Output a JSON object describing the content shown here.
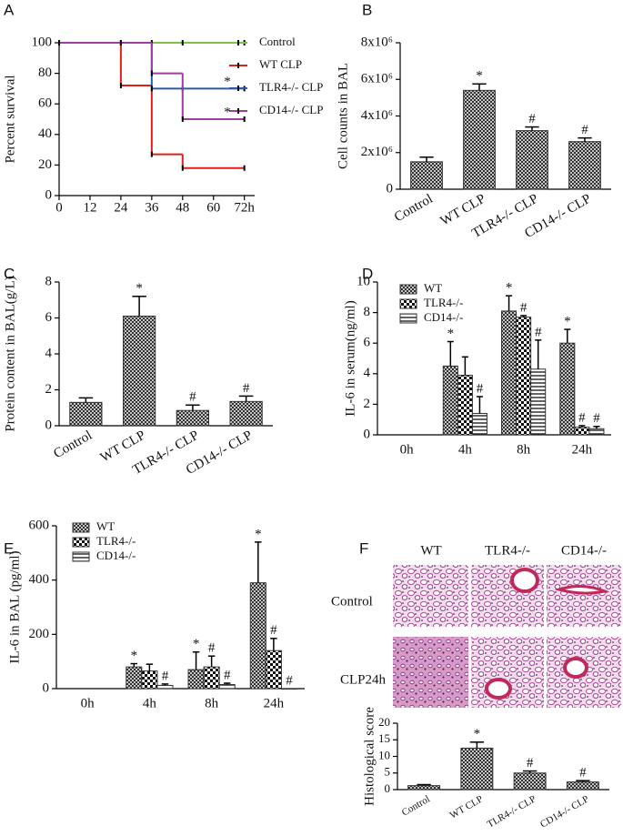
{
  "chart_data": [
    {
      "type": "line",
      "step": true,
      "panel": "A",
      "ylabel": "Percent survival",
      "x": [
        0,
        24,
        36,
        48,
        72
      ],
      "xlim": [
        0,
        76
      ],
      "xticks": [
        0,
        12,
        24,
        36,
        48,
        60,
        {
          "value": 72,
          "label": "72h"
        }
      ],
      "ylim": [
        0,
        100
      ],
      "yticks": [
        0,
        20,
        40,
        60,
        80,
        100
      ],
      "series": [
        {
          "name": "Control",
          "color": "#7dc242",
          "values": [
            100,
            100,
            100,
            100,
            100
          ]
        },
        {
          "name": "WT CLP",
          "color": "#e0201b",
          "values": [
            100,
            72,
            27,
            18,
            18
          ]
        },
        {
          "name": "TLR4-/- CLP",
          "color": "#2a5aa8",
          "values": [
            100,
            100,
            70,
            70,
            70
          ],
          "annotation": "*"
        },
        {
          "name": "CD14-/- CLP",
          "color": "#9b3fa0",
          "values": [
            100,
            100,
            80,
            50,
            50
          ],
          "annotation": "*"
        }
      ]
    },
    {
      "type": "bar",
      "panel": "B",
      "ylabel": "Cell counts in BAL",
      "categories": [
        "Control",
        "WT CLP",
        "TLR4-/- CLP",
        "CD14-/- CLP"
      ],
      "values": [
        1500000,
        5400000,
        3200000,
        2600000
      ],
      "errors": [
        250000,
        350000,
        200000,
        200000
      ],
      "markers": [
        null,
        "*",
        "#",
        "#"
      ],
      "color": "#333",
      "hatch": "cross",
      "ylim": [
        0,
        8000000
      ],
      "yticks": [
        0,
        {
          "value": 2000000,
          "label": "2x10⁶"
        },
        {
          "value": 4000000,
          "label": "4x10⁶"
        },
        {
          "value": 6000000,
          "label": "6x10⁶"
        },
        {
          "value": 8000000,
          "label": "8x10⁶"
        }
      ]
    },
    {
      "type": "bar",
      "panel": "C",
      "ylabel": "Protein content in BAL(g/L)",
      "categories": [
        "Control",
        "WT CLP",
        "TLR4-/- CLP",
        "CD14-/- CLP"
      ],
      "values": [
        1.3,
        6.1,
        0.85,
        1.35
      ],
      "errors": [
        0.25,
        1.1,
        0.3,
        0.3
      ],
      "markers": [
        null,
        "*",
        "#",
        "#"
      ],
      "color": "#333",
      "hatch": "cross",
      "ylim": [
        0,
        8
      ],
      "yticks": [
        0,
        2,
        4,
        6,
        8
      ]
    },
    {
      "type": "bar",
      "panel": "D",
      "ylabel": "IL-6 in serum(ng/ml)",
      "categories": [
        "0h",
        "4h",
        "8h",
        "24h"
      ],
      "ylim": [
        0,
        10
      ],
      "yticks": [
        0,
        2,
        4,
        6,
        8,
        10
      ],
      "series": [
        {
          "name": "WT",
          "color": "#333",
          "hatch": "cross",
          "values": [
            null,
            4.5,
            8.1,
            6.0
          ],
          "errors": [
            null,
            1.6,
            1.0,
            0.9
          ],
          "markers": [
            null,
            "*",
            "*",
            "*"
          ]
        },
        {
          "name": "TLR4-/-",
          "color": "#333",
          "hatch": "check",
          "values": [
            null,
            3.9,
            7.7,
            0.5
          ],
          "errors": [
            null,
            1.2,
            0.1,
            0.1
          ],
          "markers": [
            null,
            null,
            "#",
            "#"
          ]
        },
        {
          "name": "CD14-/-",
          "color": "#333",
          "hatch": "stripe",
          "values": [
            null,
            1.4,
            4.3,
            0.4
          ],
          "errors": [
            null,
            1.1,
            1.9,
            0.15
          ],
          "markers": [
            null,
            "#",
            "#",
            "#"
          ]
        }
      ]
    },
    {
      "type": "bar",
      "panel": "E",
      "ylabel": "IL-6 in BAL (pg/ml)",
      "categories": [
        "0h",
        "4h",
        "8h",
        "24h"
      ],
      "ylim": [
        0,
        600
      ],
      "yticks": [
        0,
        200,
        400,
        600
      ],
      "series": [
        {
          "name": "WT",
          "color": "#333",
          "hatch": "cross",
          "values": [
            null,
            80,
            70,
            390
          ],
          "errors": [
            null,
            12,
            65,
            150
          ],
          "markers": [
            null,
            "*",
            "*",
            "*"
          ]
        },
        {
          "name": "TLR4-/-",
          "color": "#333",
          "hatch": "check",
          "values": [
            null,
            65,
            80,
            140
          ],
          "errors": [
            null,
            25,
            40,
            45
          ],
          "markers": [
            null,
            null,
            "#",
            "#"
          ]
        },
        {
          "name": "CD14-/-",
          "color": "#333",
          "hatch": "stripe",
          "values": [
            null,
            12,
            15,
            0
          ],
          "errors": [
            null,
            5,
            5,
            null
          ],
          "markers": [
            null,
            "#",
            "#",
            "#"
          ]
        }
      ]
    },
    {
      "type": "bar",
      "panel": "F",
      "ylabel": "Histological score",
      "categories": [
        "Control",
        "WT CLP",
        "TLR4-/- CLP",
        "CD14-/- CLP"
      ],
      "values": [
        1.2,
        12.5,
        5.0,
        2.3
      ],
      "errors": [
        0.3,
        1.8,
        0.6,
        0.4
      ],
      "markers": [
        null,
        "*",
        "#",
        "#"
      ],
      "color": "#333",
      "hatch": "cross",
      "ylim": [
        0,
        20
      ],
      "yticks": [
        0,
        5,
        10,
        15,
        20
      ]
    }
  ],
  "panel_f_images": {
    "columns": [
      "WT",
      "TLR4-/-",
      "CD14-/-"
    ],
    "rows": [
      "Control",
      "CLP24h"
    ]
  }
}
